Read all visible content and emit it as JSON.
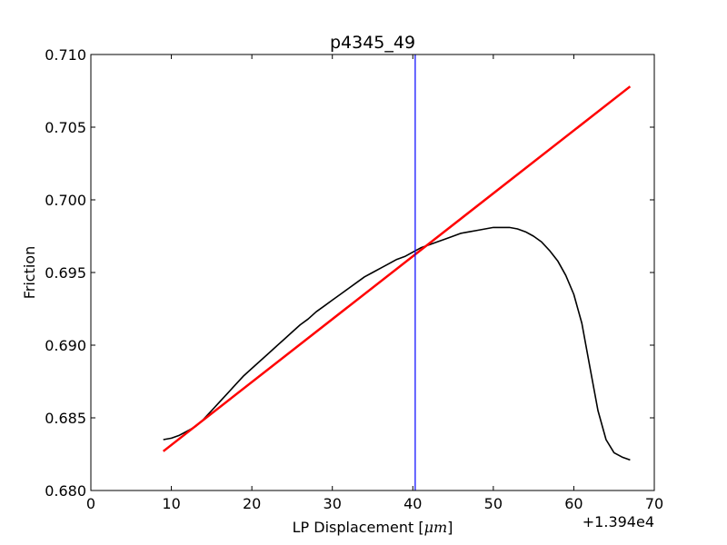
{
  "chart_data": {
    "type": "line",
    "title": "p4345_49",
    "xlabel": {
      "prefix": "LP Displacement ",
      "lbracket": "[",
      "unit": "μm",
      "rbracket": "]"
    },
    "ylabel": "Friction",
    "x_offset_label": "+1.394e4",
    "xlim": [
      0,
      70
    ],
    "ylim": [
      0.68,
      0.71
    ],
    "xticks": [
      0,
      10,
      20,
      30,
      40,
      50,
      60,
      70
    ],
    "xtick_labels": [
      "0",
      "10",
      "20",
      "30",
      "40",
      "50",
      "60",
      "70"
    ],
    "yticks": [
      0.68,
      0.685,
      0.69,
      0.695,
      0.7,
      0.705,
      0.71
    ],
    "ytick_labels": [
      "0.680",
      "0.685",
      "0.690",
      "0.695",
      "0.700",
      "0.705",
      "0.710"
    ],
    "grid": false,
    "series": [
      {
        "kind": "data",
        "color": "#000000",
        "x": [
          9,
          10,
          11,
          12,
          13,
          14,
          15,
          16,
          17,
          18,
          19,
          20,
          21,
          22,
          23,
          24,
          25,
          26,
          27,
          28,
          29,
          30,
          31,
          32,
          33,
          34,
          35,
          36,
          37,
          38,
          39,
          40,
          41,
          42,
          43,
          44,
          45,
          46,
          47,
          48,
          49,
          50,
          51,
          52,
          53,
          54,
          55,
          56,
          57,
          58,
          59,
          60,
          61,
          62,
          63,
          64,
          65,
          66,
          67
        ],
        "y": [
          0.6835,
          0.6836,
          0.6838,
          0.6841,
          0.6844,
          0.6849,
          0.6855,
          0.6861,
          0.6867,
          0.6873,
          0.6879,
          0.6884,
          0.6889,
          0.6894,
          0.6899,
          0.6904,
          0.6909,
          0.6914,
          0.6918,
          0.6923,
          0.6927,
          0.6931,
          0.6935,
          0.6939,
          0.6943,
          0.6947,
          0.695,
          0.6953,
          0.6956,
          0.6959,
          0.6961,
          0.6964,
          0.6967,
          0.6969,
          0.6971,
          0.6973,
          0.6975,
          0.6977,
          0.6978,
          0.6979,
          0.698,
          0.6981,
          0.6981,
          0.6981,
          0.698,
          0.6978,
          0.6975,
          0.6971,
          0.6965,
          0.6958,
          0.6948,
          0.6935,
          0.6915,
          0.6885,
          0.6855,
          0.6835,
          0.6826,
          0.6823,
          0.6821
        ]
      },
      {
        "kind": "fit",
        "color": "#ff0000",
        "x": [
          9,
          67
        ],
        "y": [
          0.6827,
          0.7078
        ]
      },
      {
        "kind": "vline",
        "color": "#0000ff",
        "x": [
          40.3,
          40.3
        ],
        "y": [
          0.68,
          0.71
        ]
      }
    ]
  }
}
